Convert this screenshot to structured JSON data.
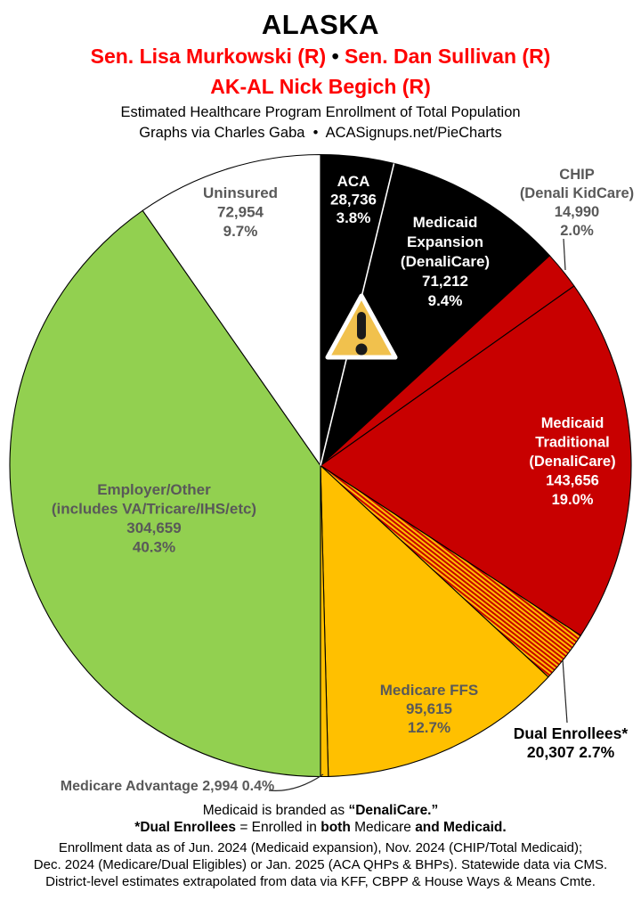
{
  "header": {
    "state": "ALASKA",
    "senators": {
      "first": "Sen. Lisa Murkowski (R)",
      "separator": "•",
      "second": "Sen. Dan Sullivan (R)"
    },
    "representative": "AK-AL Nick Begich (R)",
    "subtitle": "Estimated Healthcare Program Enrollment of Total Population",
    "attribution": "Graphs via Charles Gaba  •  ACASignups.net/PieCharts"
  },
  "colors": {
    "header_red": "#FF0000",
    "slice_black": "#000000",
    "slice_red": "#C80000",
    "slice_yellow": "#FFC000",
    "slice_green": "#92D050",
    "slice_white": "#FFFFFF",
    "label_gray": "#595959",
    "label_white": "#FFFFFF",
    "label_black": "#000000"
  },
  "icons": {
    "warning_triangle": {
      "name": "warning-triangle-icon",
      "glyph": "⚠",
      "fill": "#F1C14D",
      "border": "#FFFFFF",
      "mark": "#1A1A1A"
    }
  },
  "chart_data": {
    "type": "pie",
    "title": "Estimated Healthcare Program Enrollment of Total Population",
    "direction": "clockwise",
    "start_angle_deg_from_12_oclock": 0,
    "legend_position": "labels-on-slices",
    "slices": [
      {
        "id": "aca",
        "name": "ACA",
        "value": 28736,
        "value_text": "28,736",
        "pct": 3.8,
        "pct_text": "3.8%",
        "fill": "#000000",
        "label_color": "#FFFFFF",
        "label_placement": "inside",
        "label_lines": [
          "ACA",
          "28,736",
          "3.8%"
        ]
      },
      {
        "id": "medicaid-expansion",
        "name": "Medicaid Expansion (DenaliCare)",
        "value": 71212,
        "value_text": "71,212",
        "pct": 9.4,
        "pct_text": "9.4%",
        "fill": "#000000",
        "label_color": "#FFFFFF",
        "label_placement": "inside",
        "label_lines": [
          "Medicaid",
          "Expansion",
          "(DenaliCare)",
          "71,212",
          "9.4%"
        ]
      },
      {
        "id": "chip",
        "name": "CHIP (Denali KidCare)",
        "value": 14990,
        "value_text": "14,990",
        "pct": 2.0,
        "pct_text": "2.0%",
        "fill": "#C80000",
        "label_color": "#595959",
        "label_placement": "outside",
        "label_lines": [
          "CHIP",
          "(Denali KidCare)",
          "14,990",
          "2.0%"
        ]
      },
      {
        "id": "medicaid-traditional",
        "name": "Medicaid Traditional (DenaliCare)",
        "value": 143656,
        "value_text": "143,656",
        "pct": 19.0,
        "pct_text": "19.0%",
        "fill": "#C80000",
        "label_color": "#FFFFFF",
        "label_placement": "inside",
        "label_lines": [
          "Medicaid",
          "Traditional",
          "(DenaliCare)",
          "143,656",
          "19.0%"
        ]
      },
      {
        "id": "dual-enrollees",
        "name": "Dual Enrollees*",
        "value": 20307,
        "value_text": "20,307",
        "pct": 2.7,
        "pct_text": "2.7%",
        "fill": "stripes",
        "stripe_colors": [
          "#C80000",
          "#FFC000"
        ],
        "label_color": "#000000",
        "label_placement": "outside",
        "label_lines": [
          "Dual Enrollees*",
          "20,307 2.7%"
        ]
      },
      {
        "id": "medicare-ffs",
        "name": "Medicare FFS",
        "value": 95615,
        "value_text": "95,615",
        "pct": 12.7,
        "pct_text": "12.7%",
        "fill": "#FFC000",
        "label_color": "#595959",
        "label_placement": "inside",
        "label_lines": [
          "Medicare FFS",
          "95,615",
          "12.7%"
        ]
      },
      {
        "id": "medicare-advantage",
        "name": "Medicare Advantage",
        "value": 2994,
        "value_text": "2,994",
        "pct": 0.4,
        "pct_text": "0.4%",
        "fill": "#FFC000",
        "label_color": "#595959",
        "label_placement": "outside",
        "label_lines": [
          "Medicare Advantage 2,994 0.4%"
        ]
      },
      {
        "id": "employer-other",
        "name": "Employer/Other (includes VA/Tricare/IHS/etc)",
        "value": 304659,
        "value_text": "304,659",
        "pct": 40.3,
        "pct_text": "40.3%",
        "fill": "#92D050",
        "label_color": "#595959",
        "label_placement": "inside",
        "label_lines": [
          "Employer/Other",
          "(includes VA/Tricare/IHS/etc)",
          "304,659",
          "40.3%"
        ]
      },
      {
        "id": "uninsured",
        "name": "Uninsured",
        "value": 72954,
        "value_text": "72,954",
        "pct": 9.7,
        "pct_text": "9.7%",
        "fill": "#FFFFFF",
        "label_color": "#595959",
        "label_placement": "inside",
        "label_lines": [
          "Uninsured",
          "72,954",
          "9.7%"
        ]
      }
    ]
  },
  "footnotes": {
    "branding_segments": [
      {
        "t": "Medicaid is branded as ",
        "b": 0
      },
      {
        "t": "“DenaliCare.”",
        "b": 1
      }
    ],
    "dual_segments": [
      {
        "t": "*Dual Enrollees",
        "b": 1
      },
      {
        "t": " = Enrolled in ",
        "b": 0
      },
      {
        "t": "both",
        "b": 1
      },
      {
        "t": " Medicare ",
        "b": 0
      },
      {
        "t": "and Medicaid.",
        "b": 1
      }
    ],
    "source_lines": [
      "Enrollment data as of Jun. 2024 (Medicaid expansion), Nov. 2024 (CHIP/Total Medicaid);",
      "Dec. 2024 (Medicare/Dual Eligibles) or Jan. 2025 (ACA QHPs & BHPs). Statewide data via CMS.",
      "District-level estimates extrapolated from data via KFF, CBPP & House Ways & Means Cmte."
    ]
  }
}
